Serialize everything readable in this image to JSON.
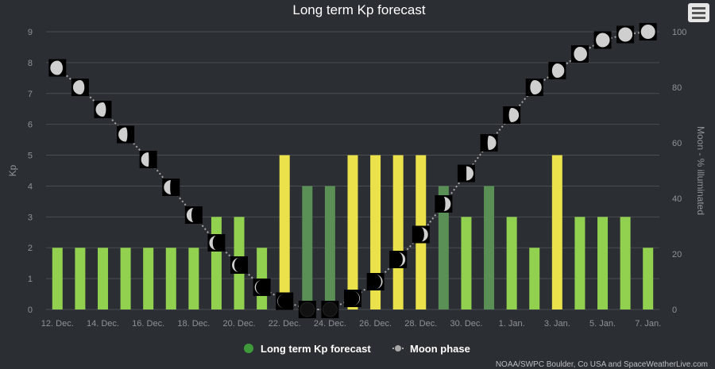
{
  "chart_data": {
    "type": "bar",
    "title": "Long term Kp forecast",
    "ylabel": "Kp",
    "y2label": "Moon - % illuminated",
    "ylim": [
      0,
      9
    ],
    "y2lim": [
      0,
      100
    ],
    "yticks": [
      "0",
      "1",
      "2",
      "3",
      "4",
      "5",
      "6",
      "7",
      "8",
      "9"
    ],
    "y2ticks": [
      "0",
      "20",
      "40",
      "60",
      "80",
      "100"
    ],
    "x_tick_labels": [
      "12. Dec.",
      "14. Dec.",
      "16. Dec.",
      "18. Dec.",
      "20. Dec.",
      "22. Dec.",
      "24. Dec.",
      "26. Dec.",
      "28. Dec.",
      "30. Dec.",
      "1. Jan.",
      "3. Jan.",
      "5. Jan.",
      "7. Jan."
    ],
    "categories": [
      "12. Dec.",
      "13. Dec.",
      "14. Dec.",
      "15. Dec.",
      "16. Dec.",
      "17. Dec.",
      "18. Dec.",
      "19. Dec.",
      "20. Dec.",
      "21. Dec.",
      "22. Dec.",
      "23. Dec.",
      "24. Dec.",
      "25. Dec.",
      "26. Dec.",
      "27. Dec.",
      "28. Dec.",
      "29. Dec.",
      "30. Dec.",
      "31. Dec.",
      "1. Jan.",
      "2. Jan.",
      "3. Jan.",
      "4. Jan.",
      "5. Jan.",
      "6. Jan.",
      "7. Jan."
    ],
    "series": [
      {
        "name": "Long term Kp forecast",
        "type": "bar",
        "values": [
          2,
          2,
          2,
          2,
          2,
          2,
          2,
          3,
          3,
          2,
          5,
          4,
          4,
          5,
          5,
          5,
          5,
          4,
          3,
          4,
          3,
          2,
          5,
          3,
          3,
          3,
          2
        ]
      },
      {
        "name": "Moon phase",
        "type": "line",
        "axis": "right",
        "values": [
          87,
          80,
          72,
          63,
          54,
          44,
          34,
          24,
          16,
          8,
          3,
          0,
          0,
          4,
          10,
          18,
          27,
          38,
          49,
          60,
          70,
          80,
          86,
          92,
          97,
          99,
          100
        ]
      }
    ],
    "kp_colors": {
      "2": "#92d050",
      "3": "#92d050",
      "4": "#5a8f55",
      "5": "#eae14b"
    },
    "legend": "bottom-center",
    "grid": true,
    "credits": "NOAA/SWPC Boulder, Co USA and SpaceWeatherLive.com"
  },
  "colors": {
    "background": "#2b2e33",
    "grid": "#4a4d52",
    "legend_dot": "#3f9a3a",
    "moon_line": "#a8a8a8"
  },
  "menu": {
    "icon": "hamburger-menu-icon"
  }
}
